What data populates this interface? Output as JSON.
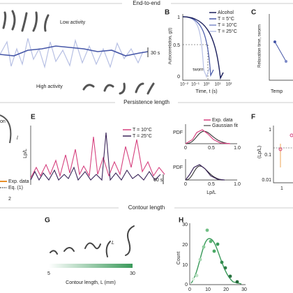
{
  "sections": [
    "End-to-end",
    "Persistence length",
    "Contour length"
  ],
  "panel_a": {
    "low": "Low activity",
    "high": "High activity",
    "scale": "30 s"
  },
  "panel_b": {
    "label": "B",
    "legend": [
      "Alcohol",
      "T = 5°C",
      "T = 10°C",
      "T = 25°C"
    ],
    "y_label": "Autocorrelation, g(t)",
    "y_ticks": [
      "1",
      "0.5",
      "0"
    ],
    "x_ticks": [
      "10⁻²",
      "10⁻¹",
      "10⁰",
      "10¹",
      "10²"
    ],
    "x_label": "Time, t (s)",
    "annotation": "τworm"
  },
  "panel_c": {
    "label": "C",
    "y_label": "Relaxation time, τworm",
    "x_label": "Temp"
  },
  "panel_d": {
    "texts": [
      "on",
      "l"
    ],
    "legend": [
      "Exp. data",
      "Eq. (1)"
    ],
    "tick": "2"
  },
  "panel_e": {
    "label": "E",
    "y_label": "Lp/L",
    "legend": [
      "T = 10°C",
      "T = 25°C"
    ],
    "scale": "60 s"
  },
  "pdf_top": {
    "y_label": "PDF",
    "legend": [
      "Exp. data",
      "Gaussian fit"
    ],
    "x_ticks": [
      "0",
      "0.5",
      "1.0"
    ]
  },
  "pdf_bottom": {
    "y_label": "PDF",
    "x_ticks": [
      "0",
      "0.5",
      "1.0"
    ],
    "x_label": "Lp/L"
  },
  "panel_f": {
    "label": "F",
    "y_label": "⟨Lp/L⟩",
    "y_ticks": [
      "1",
      "0.1",
      "0.01"
    ],
    "x_tick": "1"
  },
  "panel_g": {
    "label": "G",
    "curve_label": "L",
    "scale_ticks": [
      "5",
      "30"
    ],
    "scale_label": "Contour length, L (mm)"
  },
  "panel_h": {
    "label": "H",
    "y_label": "Count",
    "y_ticks": [
      "30",
      "20",
      "10",
      "0"
    ],
    "x_ticks": [
      "0",
      "10",
      "20",
      "30"
    ]
  }
}
